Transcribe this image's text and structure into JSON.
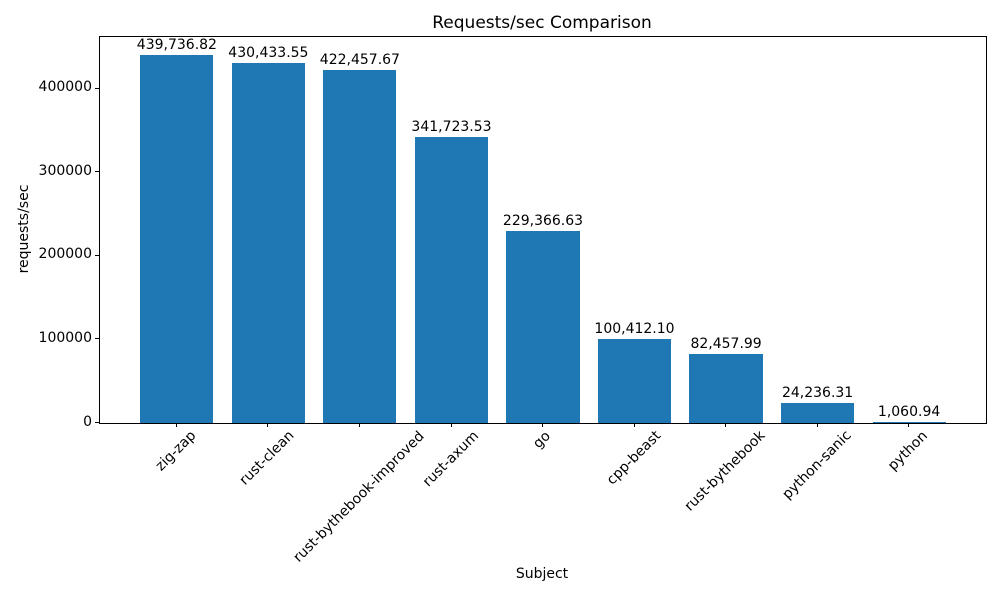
{
  "chart_data": {
    "type": "bar",
    "title": "Requests/sec Comparison",
    "xlabel": "Subject",
    "ylabel": "requests/sec",
    "categories": [
      "zig-zap",
      "rust-clean",
      "rust-bythebook-improved",
      "rust-axum",
      "go",
      "cpp-beast",
      "rust-bythebook",
      "python-sanic",
      "python"
    ],
    "values": [
      439736.82,
      430433.55,
      422457.67,
      341723.53,
      229366.63,
      100412.1,
      82457.99,
      24236.31,
      1060.94
    ],
    "value_labels": [
      "439,736.82",
      "430,433.55",
      "422,457.67",
      "341,723.53",
      "229,366.63",
      "100,412.10",
      "82,457.99",
      "24,236.31",
      "1,060.94"
    ],
    "ylim": [
      0,
      461724
    ],
    "yticks": [
      0,
      100000,
      200000,
      300000,
      400000
    ],
    "ytick_labels": [
      "0",
      "100000",
      "200000",
      "300000",
      "400000"
    ],
    "bar_color": "#1f77b4",
    "spine_color": "#000000",
    "background_color": "#ffffff",
    "grid": false,
    "legend": null,
    "x_tick_rotation": 45
  }
}
